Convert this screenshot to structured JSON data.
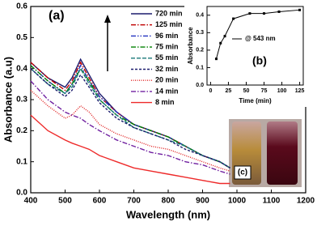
{
  "chart_data": [
    {
      "type": "line",
      "title": "(a)",
      "x_label": "Wavelength (nm)",
      "y_label": "Absorbance (a.u)",
      "x": [
        400,
        450,
        500,
        520,
        545,
        570,
        600,
        650,
        700,
        750,
        800,
        850,
        900,
        950,
        980
      ],
      "xlim": [
        400,
        1200
      ],
      "xticks": [
        400,
        500,
        600,
        700,
        800,
        900,
        1000,
        1100,
        1200
      ],
      "ylim": [
        0,
        0.6
      ],
      "yticks": [
        {
          "value": 0,
          "label": "0.0"
        },
        0.1,
        0.2,
        0.3,
        0.4,
        0.5,
        0.6
      ],
      "series": [
        {
          "name": "720 min",
          "color": "#1c1c6e",
          "style": "solid",
          "values": [
            0.42,
            0.37,
            0.34,
            0.37,
            0.43,
            0.38,
            0.32,
            0.26,
            0.22,
            0.2,
            0.18,
            0.15,
            0.12,
            0.1,
            0.08
          ]
        },
        {
          "name": "125 min",
          "color": "#c00000",
          "style": "dashdot",
          "values": [
            0.42,
            0.37,
            0.33,
            0.36,
            0.42,
            0.37,
            0.31,
            0.26,
            0.22,
            0.2,
            0.18,
            0.15,
            0.12,
            0.1,
            0.08
          ]
        },
        {
          "name": "96 min",
          "color": "#2030c0",
          "style": "dashdotdot",
          "values": [
            0.41,
            0.36,
            0.32,
            0.35,
            0.41,
            0.36,
            0.31,
            0.26,
            0.22,
            0.2,
            0.18,
            0.15,
            0.12,
            0.1,
            0.08
          ]
        },
        {
          "name": "75 min",
          "color": "#008000",
          "style": "dashdot",
          "values": [
            0.41,
            0.36,
            0.32,
            0.35,
            0.4,
            0.36,
            0.3,
            0.25,
            0.22,
            0.2,
            0.18,
            0.15,
            0.12,
            0.1,
            0.08
          ]
        },
        {
          "name": "55 min",
          "color": "#1a7a7a",
          "style": "dashed",
          "values": [
            0.4,
            0.35,
            0.32,
            0.34,
            0.4,
            0.35,
            0.3,
            0.25,
            0.21,
            0.19,
            0.17,
            0.15,
            0.12,
            0.1,
            0.08
          ]
        },
        {
          "name": "32 min",
          "color": "#1c1c6e",
          "style": "shortdash",
          "values": [
            0.4,
            0.35,
            0.31,
            0.33,
            0.38,
            0.34,
            0.29,
            0.24,
            0.21,
            0.19,
            0.17,
            0.14,
            0.12,
            0.1,
            0.08
          ]
        },
        {
          "name": "20 min",
          "color": "#e02020",
          "style": "dotted",
          "values": [
            0.33,
            0.28,
            0.24,
            0.25,
            0.28,
            0.26,
            0.22,
            0.19,
            0.17,
            0.15,
            0.14,
            0.12,
            0.1,
            0.08,
            0.07
          ]
        },
        {
          "name": "14 min",
          "color": "#7020a0",
          "style": "dashdot",
          "values": [
            0.36,
            0.3,
            0.26,
            0.25,
            0.24,
            0.22,
            0.2,
            0.17,
            0.15,
            0.13,
            0.12,
            0.1,
            0.09,
            0.07,
            0.06
          ]
        },
        {
          "name": "8 min",
          "color": "#ee2a2a",
          "style": "solid",
          "values": [
            0.25,
            0.2,
            0.17,
            0.16,
            0.15,
            0.14,
            0.12,
            0.1,
            0.08,
            0.07,
            0.06,
            0.05,
            0.04,
            0.03,
            0.03
          ]
        }
      ]
    },
    {
      "type": "line",
      "title": "(b)",
      "x_label": "Time (min)",
      "y_label": "Absorbance",
      "x": [
        8,
        14,
        20,
        32,
        55,
        75,
        96,
        125
      ],
      "xlim": [
        -5,
        130
      ],
      "xticks": [
        0,
        25,
        50,
        75,
        100,
        125
      ],
      "ylim": [
        0,
        0.45
      ],
      "yticks": [
        {
          "value": 0,
          "label": "0.0"
        },
        0.1,
        0.2,
        0.3,
        0.4
      ],
      "series": [
        {
          "name": "@ 543 nm",
          "color": "#000000",
          "style": "solid",
          "values": [
            0.15,
            0.24,
            0.28,
            0.38,
            0.41,
            0.41,
            0.42,
            0.43
          ]
        }
      ]
    }
  ],
  "photo": {
    "label": "(c)"
  }
}
